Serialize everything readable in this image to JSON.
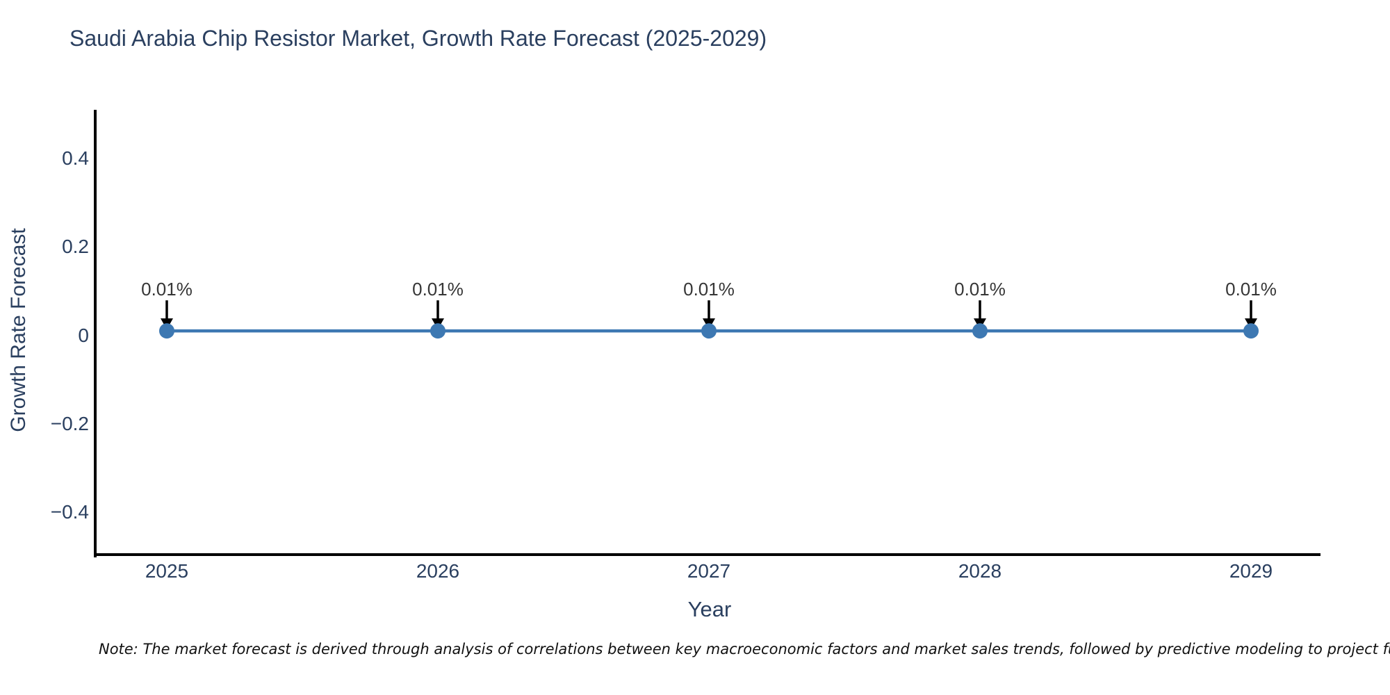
{
  "note": "Note: The market forecast is derived through analysis of correlations between key macroeconomic factors and market sales trends, followed by predictive modeling to project future sales.",
  "chart_data": {
    "type": "line",
    "title": "Saudi Arabia Chip Resistor Market, Growth Rate Forecast (2025-2029)",
    "xlabel": "Year",
    "ylabel": "Growth Rate Forecast",
    "x": [
      2025,
      2026,
      2027,
      2028,
      2029
    ],
    "series": [
      {
        "name": "Growth Rate Forecast",
        "values": [
          0.01,
          0.01,
          0.01,
          0.01,
          0.01
        ]
      }
    ],
    "point_labels": [
      "0.01%",
      "0.01%",
      "0.01%",
      "0.01%",
      "0.01%"
    ],
    "xtick_labels": [
      "2025",
      "2026",
      "2027",
      "2028",
      "2029"
    ],
    "yticks": [
      0.4,
      0.2,
      0,
      -0.2,
      -0.4
    ],
    "ytick_labels": [
      "0.4",
      "0.2",
      "0",
      "−0.2",
      "−0.4"
    ],
    "ylim": [
      -0.5,
      0.51
    ],
    "grid": false,
    "legend": "none",
    "colors": {
      "line": "#3d78b2",
      "marker": "#3d78b2",
      "axis": "#000000",
      "text": "#2a3f5f",
      "annotation_text": "#363636",
      "arrow": "#000000",
      "background": "#ffffff"
    }
  }
}
